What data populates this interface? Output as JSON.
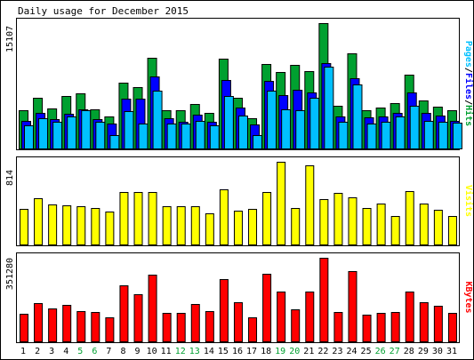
{
  "chart_data": [
    {
      "type": "bar",
      "title": "Daily usage for December 2015",
      "ylabel": "15107",
      "right_label_parts": [
        "Pages",
        "/",
        "Files",
        "/",
        "Hits"
      ],
      "categories": [
        "1",
        "2",
        "3",
        "4",
        "5",
        "6",
        "7",
        "8",
        "9",
        "10",
        "11",
        "12",
        "13",
        "14",
        "15",
        "16",
        "17",
        "18",
        "19",
        "20",
        "21",
        "22",
        "23",
        "24",
        "25",
        "26",
        "27",
        "28",
        "29",
        "30",
        "31"
      ],
      "weekend_days": [
        "5",
        "6",
        "12",
        "13",
        "19",
        "20",
        "26",
        "27"
      ],
      "ylim": [
        0,
        15107
      ],
      "series": [
        {
          "name": "Hits",
          "color": "#00a030",
          "values": [
            4637,
            6131,
            4871,
            6366,
            6681,
            4792,
            3928,
            8016,
            7465,
            10929,
            4636,
            4714,
            5424,
            4320,
            10850,
            6206,
            3771,
            10221,
            9229,
            10143,
            9385,
            15107,
            5188,
            11480,
            4714,
            4950,
            5503,
            8958,
            5895,
            5107,
            4716
          ]
        },
        {
          "name": "Files",
          "color": "#0000ff",
          "values": [
            3457,
            4399,
            3615,
            4242,
            4795,
            3614,
            3064,
            6052,
            6052,
            8723,
            3771,
            3300,
            4164,
            3300,
            8252,
            4950,
            2986,
            8173,
            6524,
            7152,
            6760,
            10300,
            3929,
            8488,
            3850,
            3929,
            4399,
            6839,
            4400,
            4006,
            3457
          ]
        },
        {
          "name": "Pages",
          "color": "#00c0ff",
          "values": [
            2829,
            3772,
            3300,
            3929,
            4636,
            3300,
            1729,
            4557,
            3065,
            6995,
            3064,
            3064,
            3457,
            2829,
            6366,
            4006,
            1729,
            7073,
            4792,
            4714,
            6130,
            9900,
            3300,
            7780,
            3065,
            3300,
            3929,
            5266,
            3457,
            3300,
            3143
          ]
        }
      ]
    },
    {
      "type": "bar",
      "ylabel": "814",
      "right_label": "Visits",
      "ylim": [
        0,
        814
      ],
      "series": [
        {
          "name": "Visits",
          "color": "#ffff00",
          "values": [
            354,
            460,
            398,
            389,
            384,
            367,
            327,
            523,
            518,
            523,
            382,
            384,
            381,
            316,
            544,
            336,
            355,
            523,
            814,
            367,
            781,
            446,
            512,
            471,
            367,
            409,
            289,
            526,
            409,
            346,
            285
          ]
        }
      ]
    },
    {
      "type": "bar",
      "ylabel": "351280",
      "right_label": "KBytes",
      "ylim": [
        0,
        351280
      ],
      "series": [
        {
          "name": "KBytes",
          "color": "#ff0000",
          "values": [
            118860,
            162000,
            140630,
            156710,
            128860,
            127020,
            102290,
            236370,
            198900,
            279260,
            121750,
            121760,
            158660,
            131150,
            261410,
            166120,
            105360,
            283900,
            210440,
            136530,
            212180,
            351280,
            124160,
            294470,
            115330,
            123470,
            127140,
            212180,
            166120,
            151800,
            122990
          ]
        }
      ]
    }
  ]
}
